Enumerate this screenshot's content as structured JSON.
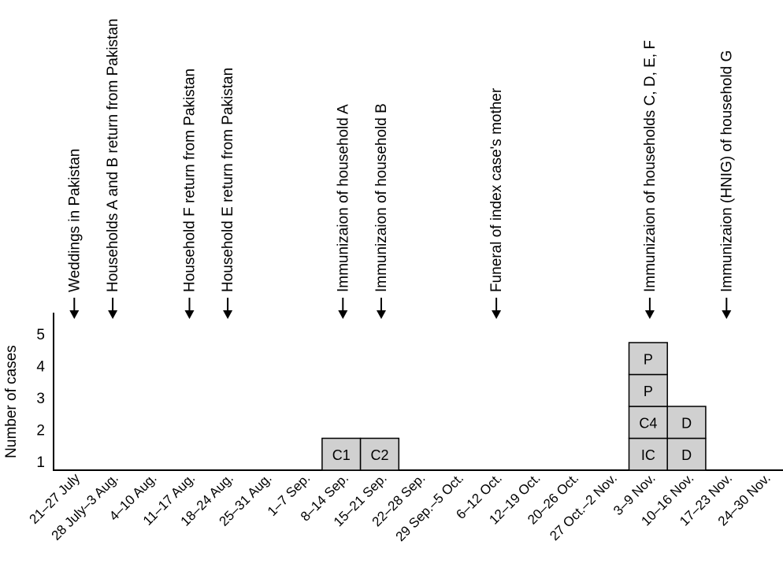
{
  "chart_data": {
    "type": "bar",
    "ylabel": "Number of cases",
    "yticks": [
      "1",
      "2",
      "3",
      "4",
      "5"
    ],
    "categories": [
      "21–27 July",
      "28 July–3 Aug.",
      "4–10 Aug.",
      "11–17 Aug.",
      "18–24 Aug.",
      "25–31 Aug.",
      "1–7 Sep.",
      "8–14 Sep.",
      "15–21 Sep.",
      "22–28 Sep.",
      "29 Sep.–5 Oct.",
      "6–12 Oct.",
      "12–19 Oct.",
      "20–26 Oct.",
      "27 Oct.–2 Nov.",
      "3–9 Nov.",
      "10–16 Nov.",
      "17–23 Nov.",
      "24–30 Nov."
    ],
    "values": [
      0,
      0,
      0,
      0,
      0,
      0,
      0,
      1,
      1,
      0,
      0,
      0,
      0,
      0,
      0,
      4,
      2,
      0,
      0
    ],
    "cases": [
      {
        "week": 7,
        "level": 1,
        "label": "C1"
      },
      {
        "week": 8,
        "level": 1,
        "label": "C2"
      },
      {
        "week": 15,
        "level": 1,
        "label": "IC"
      },
      {
        "week": 15,
        "level": 2,
        "label": "C4"
      },
      {
        "week": 15,
        "level": 3,
        "label": "P"
      },
      {
        "week": 15,
        "level": 4,
        "label": "P"
      },
      {
        "week": 16,
        "level": 1,
        "label": "D"
      },
      {
        "week": 16,
        "level": 2,
        "label": "D"
      }
    ],
    "events": [
      {
        "week": 0,
        "label": "Weddings in Pakistan"
      },
      {
        "week": 1,
        "label": "Households A and B return from Pakistan"
      },
      {
        "week": 3,
        "label": "Household F return from Pakistan"
      },
      {
        "week": 4,
        "label": "Household E return from Pakistan"
      },
      {
        "week": 7,
        "label": "Immunizaion of household A"
      },
      {
        "week": 8,
        "label": "Immunizaion of household B"
      },
      {
        "week": 11,
        "label": "Funeral of index case's mother"
      },
      {
        "week": 15,
        "label": "Immunizaion of households C, D, E, F"
      },
      {
        "week": 17,
        "label": "Immunizaion (HNIG) of household G"
      }
    ],
    "ylim": [
      0,
      5
    ],
    "grid": false,
    "box_color": "#d0d0d0"
  }
}
